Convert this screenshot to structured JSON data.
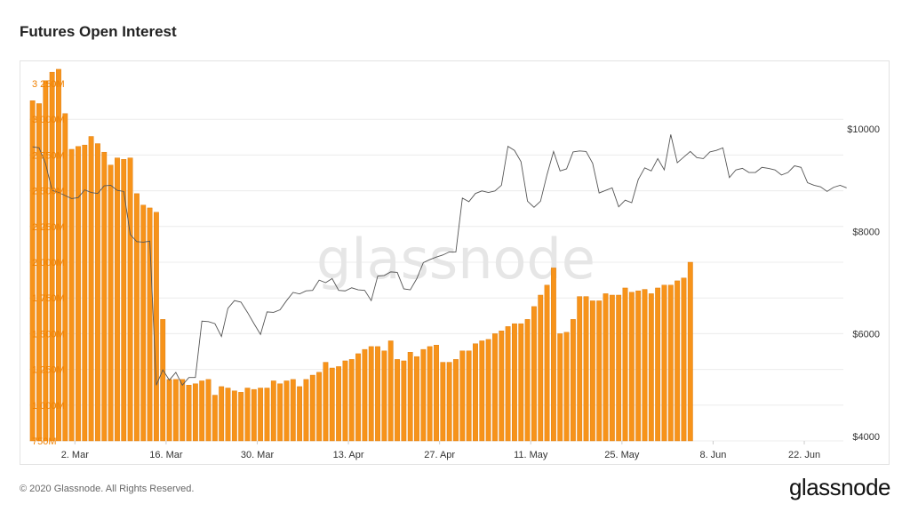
{
  "page": {
    "title": "Futures Open Interest",
    "copyright": "© 2020 Glassnode. All Rights Reserved.",
    "brand": "glassnode",
    "watermark": "glassnode"
  },
  "colors": {
    "bar": "#f7931a",
    "bar_edge": "#d97706",
    "price_line": "#555555",
    "grid": "#ececec",
    "left_tick": "#f08000",
    "right_tick": "#333333",
    "watermark": "#e6e6e6"
  },
  "chart_data": {
    "type": "bar",
    "x_axis": {
      "start_date": "2020-02-24",
      "end_date": "2020-06-28",
      "ticks": [
        {
          "date": "2020-03-02",
          "label": "2. Mar"
        },
        {
          "date": "2020-03-16",
          "label": "16. Mar"
        },
        {
          "date": "2020-03-30",
          "label": "30. Mar"
        },
        {
          "date": "2020-04-13",
          "label": "13. Apr"
        },
        {
          "date": "2020-04-27",
          "label": "27. Apr"
        },
        {
          "date": "2020-05-11",
          "label": "11. May"
        },
        {
          "date": "2020-05-25",
          "label": "25. May"
        },
        {
          "date": "2020-06-08",
          "label": "8. Jun"
        },
        {
          "date": "2020-06-22",
          "label": "22. Jun"
        }
      ]
    },
    "y_left": {
      "ylim": [
        750,
        3250
      ],
      "unit": "M",
      "ticks": [
        {
          "value": 750,
          "label": "750M"
        },
        {
          "value": 1000,
          "label": "1 000M"
        },
        {
          "value": 1250,
          "label": "1 250M"
        },
        {
          "value": 1500,
          "label": "1 500M"
        },
        {
          "value": 1750,
          "label": "1 750M"
        },
        {
          "value": 2000,
          "label": "2 000M"
        },
        {
          "value": 2250,
          "label": "2 250M"
        },
        {
          "value": 2500,
          "label": "2 500M"
        },
        {
          "value": 2750,
          "label": "2 750M"
        },
        {
          "value": 3000,
          "label": "3 000M"
        },
        {
          "value": 3250,
          "label": "3 250M"
        }
      ]
    },
    "y_right": {
      "ylim": [
        4000,
        10000
      ],
      "ticks": [
        {
          "value": 4000,
          "label": "$4000"
        },
        {
          "value": 6000,
          "label": "$6000"
        },
        {
          "value": 8000,
          "label": "$8000"
        },
        {
          "value": 10000,
          "label": "$10000"
        }
      ]
    },
    "grid": true,
    "open_interest": {
      "start_date": "2020-02-24",
      "values": [
        3130,
        3110,
        3270,
        3330,
        3350,
        3040,
        2790,
        2810,
        2820,
        2880,
        2830,
        2770,
        2680,
        2730,
        2720,
        2730,
        2480,
        2400,
        2380,
        2350,
        1600,
        1180,
        1180,
        1180,
        1140,
        1150,
        1170,
        1180,
        1070,
        1130,
        1120,
        1100,
        1090,
        1120,
        1110,
        1120,
        1120,
        1170,
        1150,
        1170,
        1180,
        1130,
        1180,
        1210,
        1230,
        1300,
        1260,
        1270,
        1310,
        1320,
        1360,
        1390,
        1410,
        1410,
        1380,
        1450,
        1320,
        1310,
        1370,
        1340,
        1390,
        1410,
        1420,
        1300,
        1300,
        1320,
        1380,
        1380,
        1430,
        1450,
        1460,
        1500,
        1520,
        1550,
        1570,
        1570,
        1600,
        1690,
        1770,
        1840,
        1960,
        1500,
        1510,
        1600,
        1760,
        1760,
        1730,
        1730,
        1780,
        1770,
        1770,
        1820,
        1790,
        1800,
        1810,
        1780,
        1820,
        1840,
        1840,
        1870,
        1890,
        2000
      ]
    },
    "price": {
      "start_date": "2020-02-24",
      "values": [
        9650,
        9630,
        9320,
        8800,
        8760,
        8700,
        8640,
        8660,
        8810,
        8760,
        8740,
        8890,
        8900,
        8800,
        8780,
        7940,
        7800,
        7790,
        7810,
        5000,
        5300,
        5100,
        5250,
        5000,
        5150,
        5150,
        6250,
        6240,
        6200,
        5950,
        6500,
        6650,
        6620,
        6420,
        6200,
        5990,
        6430,
        6420,
        6470,
        6650,
        6810,
        6780,
        6840,
        6850,
        7050,
        7000,
        7080,
        6850,
        6840,
        6900,
        6860,
        6850,
        6650,
        7130,
        7140,
        7210,
        7200,
        6880,
        6860,
        7080,
        7390,
        7450,
        7500,
        7540,
        7600,
        7600,
        8650,
        8580,
        8740,
        8790,
        8760,
        8790,
        8900,
        9660,
        9580,
        9360,
        8590,
        8470,
        8590,
        9110,
        9560,
        9180,
        9220,
        9550,
        9570,
        9560,
        9330,
        8750,
        8800,
        8850,
        8480,
        8610,
        8560,
        9010,
        9240,
        9180,
        9420,
        9200,
        9890,
        9340,
        9450,
        9560,
        9440,
        9420,
        9550,
        9580,
        9630,
        9050,
        9200,
        9230,
        9150,
        9150,
        9250,
        9230,
        9200,
        9100,
        9150,
        9280,
        9250,
        8950,
        8900,
        8870,
        8780,
        8860,
        8900,
        8850
      ]
    }
  }
}
